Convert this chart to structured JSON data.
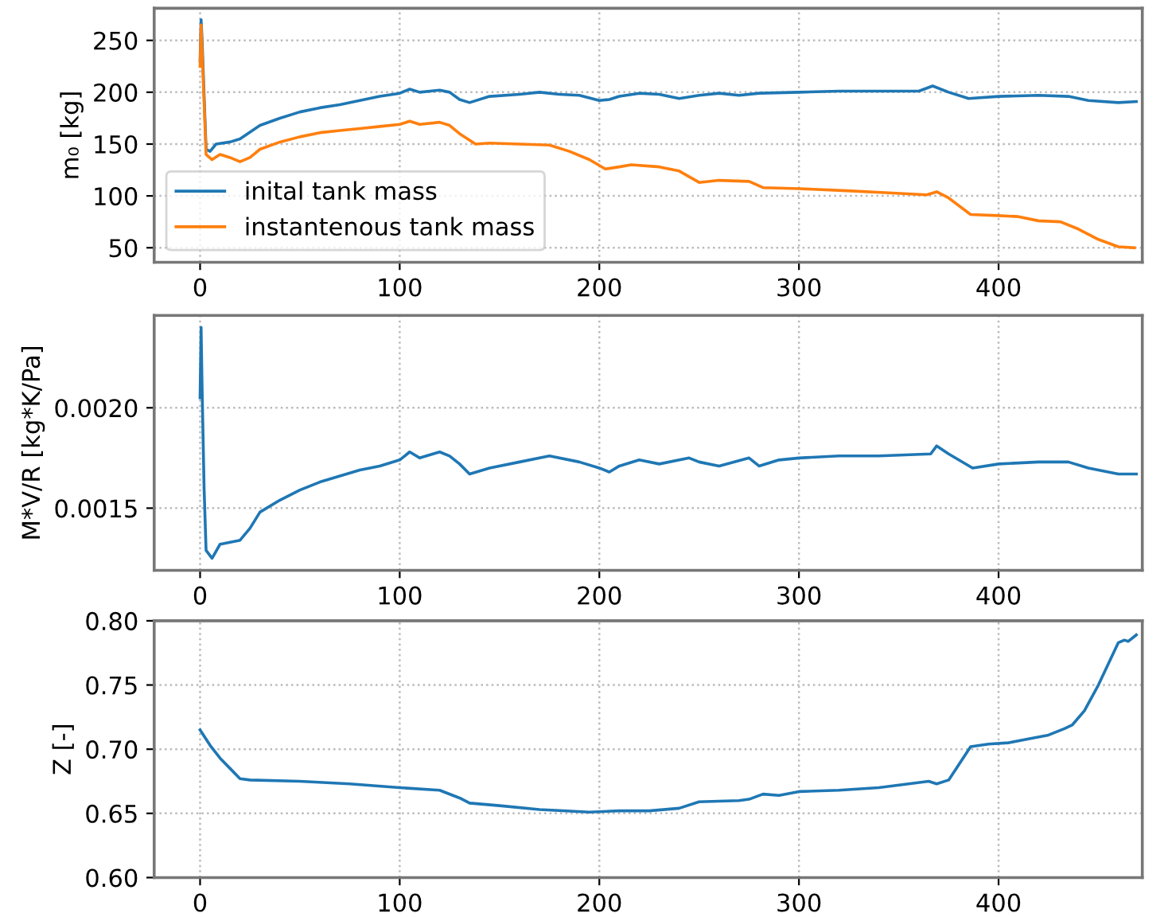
{
  "chart_data": [
    {
      "type": "line",
      "ylabel": "m₀ [kg]",
      "xlim": [
        -23,
        472
      ],
      "xticks": [
        0,
        100,
        200,
        300,
        400
      ],
      "ylim": [
        36,
        281
      ],
      "yticks": [
        50,
        100,
        150,
        200,
        250
      ],
      "grid": true,
      "legend": "bottom left",
      "series": [
        {
          "name": "inital tank mass",
          "color": "#1f77b4",
          "x": [
            0,
            0.5,
            1,
            3,
            5,
            8,
            15,
            20,
            30,
            40,
            50,
            60,
            70,
            80,
            90,
            100,
            105,
            110,
            120,
            125,
            130,
            135,
            145,
            160,
            170,
            180,
            190,
            200,
            205,
            210,
            220,
            230,
            240,
            250,
            260,
            270,
            280,
            300,
            320,
            340,
            360,
            367,
            375,
            385,
            400,
            420,
            435,
            445,
            460,
            469
          ],
          "values": [
            230,
            270,
            250,
            145,
            143,
            150,
            152,
            155,
            168,
            175,
            181,
            185,
            188,
            192,
            196,
            199,
            203,
            200,
            202,
            200,
            193,
            190,
            196,
            198,
            200,
            198,
            197,
            192,
            193,
            196,
            199,
            198,
            194,
            197,
            199,
            197,
            199,
            200,
            201,
            201,
            201,
            206,
            200,
            194,
            196,
            197,
            196,
            192,
            190,
            191
          ]
        },
        {
          "name": "instantenous tank mass",
          "color": "#ff7f0e",
          "x": [
            0,
            0.5,
            1,
            3,
            6,
            10,
            15,
            20,
            25,
            30,
            40,
            50,
            60,
            70,
            80,
            90,
            100,
            105,
            110,
            120,
            125,
            130,
            138,
            145,
            160,
            175,
            185,
            195,
            203,
            210,
            216,
            230,
            240,
            250,
            260,
            275,
            282,
            300,
            324,
            345,
            364,
            369,
            375,
            386,
            400,
            410,
            420,
            431,
            440,
            450,
            460,
            468
          ],
          "values": [
            225,
            265,
            240,
            140,
            135,
            140,
            137,
            133,
            137,
            145,
            152,
            157,
            161,
            163,
            165,
            167,
            169,
            172,
            169,
            171,
            168,
            160,
            150,
            151,
            150,
            149,
            143,
            135,
            126,
            128,
            130,
            128,
            124,
            113,
            115,
            114,
            108,
            107,
            105,
            103,
            101,
            104,
            98,
            82,
            81,
            80,
            76,
            75,
            68,
            58,
            51,
            50
          ]
        }
      ]
    },
    {
      "type": "line",
      "ylabel": "M*V/R [kg*K/Pa]",
      "xlim": [
        -23,
        472
      ],
      "xticks": [
        0,
        100,
        200,
        300,
        400
      ],
      "ylim": [
        0.00119,
        0.00246
      ],
      "yticks": [
        {
          "value": 0.0015,
          "label": "0.0015"
        },
        {
          "value": 0.002,
          "label": "0.0020"
        }
      ],
      "grid": true,
      "series": [
        {
          "color": "#1f77b4",
          "x": [
            0,
            0.5,
            1,
            2,
            3,
            6,
            10,
            15,
            20,
            25,
            30,
            40,
            50,
            60,
            70,
            80,
            90,
            100,
            105,
            110,
            120,
            125,
            130,
            135,
            145,
            160,
            175,
            190,
            200,
            205,
            210,
            220,
            230,
            245,
            250,
            260,
            275,
            280,
            290,
            300,
            320,
            340,
            366,
            369,
            375,
            387,
            400,
            420,
            435,
            445,
            460,
            469
          ],
          "values": [
            0.00205,
            0.0024,
            0.0021,
            0.0016,
            0.00129,
            0.00125,
            0.00132,
            0.00133,
            0.00134,
            0.0014,
            0.00148,
            0.00154,
            0.00159,
            0.00163,
            0.00166,
            0.00169,
            0.00171,
            0.00174,
            0.00178,
            0.00175,
            0.00178,
            0.00176,
            0.00172,
            0.00167,
            0.0017,
            0.00173,
            0.00176,
            0.00173,
            0.0017,
            0.00168,
            0.00171,
            0.00174,
            0.00172,
            0.00175,
            0.00173,
            0.00171,
            0.00175,
            0.00171,
            0.00174,
            0.00175,
            0.00176,
            0.00176,
            0.00177,
            0.00181,
            0.00177,
            0.0017,
            0.00172,
            0.00173,
            0.00173,
            0.0017,
            0.00167,
            0.00167
          ]
        }
      ]
    },
    {
      "type": "line",
      "ylabel": "Z [-]",
      "xlim": [
        -23,
        472
      ],
      "xticks": [
        0,
        100,
        200,
        300,
        400
      ],
      "ylim": [
        0.6,
        0.8
      ],
      "yticks": [
        {
          "value": 0.6,
          "label": "0.60"
        },
        {
          "value": 0.65,
          "label": "0.65"
        },
        {
          "value": 0.7,
          "label": "0.70"
        },
        {
          "value": 0.75,
          "label": "0.75"
        },
        {
          "value": 0.8,
          "label": "0.80"
        }
      ],
      "grid": true,
      "series": [
        {
          "color": "#1f77b4",
          "x": [
            0,
            5,
            10,
            15,
            20,
            25,
            50,
            75,
            100,
            120,
            130,
            135,
            150,
            170,
            195,
            210,
            225,
            240,
            250,
            270,
            275,
            282,
            290,
            300,
            320,
            340,
            365,
            369,
            375,
            386,
            395,
            405,
            415,
            425,
            433,
            437,
            443,
            450,
            460,
            463,
            465,
            469
          ],
          "values": [
            0.715,
            0.703,
            0.693,
            0.685,
            0.677,
            0.676,
            0.675,
            0.673,
            0.67,
            0.668,
            0.662,
            0.658,
            0.656,
            0.653,
            0.651,
            0.652,
            0.652,
            0.654,
            0.659,
            0.66,
            0.661,
            0.665,
            0.664,
            0.667,
            0.668,
            0.67,
            0.675,
            0.673,
            0.676,
            0.702,
            0.704,
            0.705,
            0.708,
            0.711,
            0.716,
            0.719,
            0.73,
            0.75,
            0.783,
            0.785,
            0.784,
            0.789
          ]
        }
      ]
    }
  ]
}
